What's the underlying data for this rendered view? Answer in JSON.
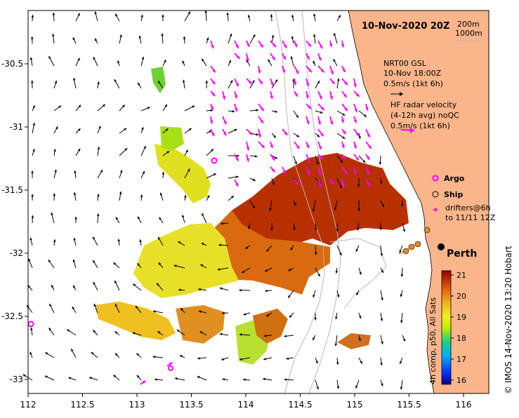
{
  "map": {
    "title": "10-Nov-2020 20Z",
    "x_ticks": [
      "112",
      "112.5",
      "113",
      "113.5",
      "114",
      "114.5",
      "115",
      "115.5",
      "116"
    ],
    "y_ticks": [
      "-30.5",
      "-31",
      "-31.5",
      "-32",
      "-32.5",
      "-33"
    ],
    "lon_range": [
      112,
      116.3
    ],
    "lat_range": [
      -33.15,
      -30.1
    ],
    "isobaths": {
      "line1": "200m",
      "line2": "1000m"
    },
    "legend": {
      "model_line1": "NRT00 GSL",
      "model_line2": "10-Nov 18:00Z",
      "model_scale": "0.5m/s (1kt 6h)",
      "radar_line1": "HF radar velocity",
      "radar_line2": "(4-12h avg) noQC",
      "radar_scale": "0.5m/s (1kt 6h)",
      "argo": "Argo",
      "ship": "Ship",
      "drifters_line1": "drifters@6h",
      "drifters_line2": "to 11/11 12Z"
    },
    "place_label": "Perth",
    "colorbar": {
      "ticks": [
        "21",
        "20",
        "19",
        "18",
        "17",
        "16"
      ],
      "range": [
        15.8,
        21.2
      ],
      "label": "4h comp, p50, All Sats"
    },
    "credit": "© IMOS 14-Nov-2020 13:20 Hobart",
    "colors": {
      "land": "#fbb58a",
      "model_arrow": "#000000",
      "radar_arrow": "#ff00ff",
      "ship": "#e08a2a"
    }
  }
}
